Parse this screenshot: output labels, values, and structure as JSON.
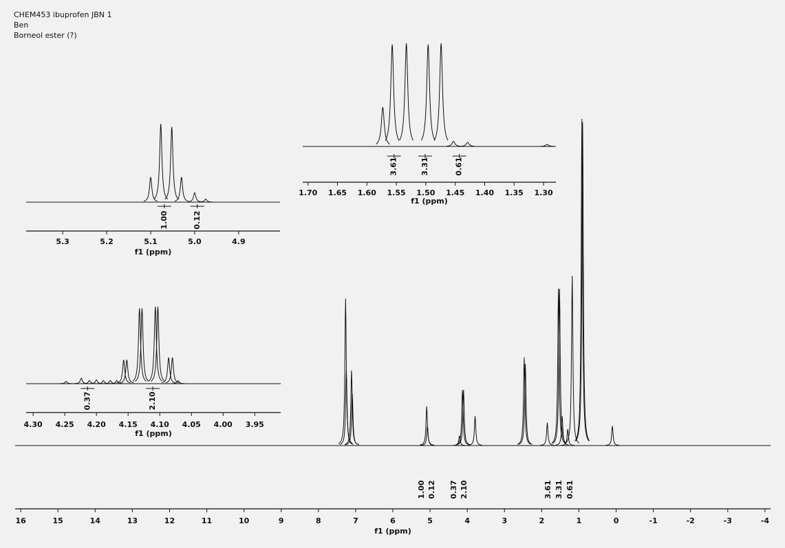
{
  "chart_data": [
    {
      "type": "line",
      "title": "CHEM453 ibuprofen JBN 1",
      "subtitle": "Ben",
      "annotation": "Borneol ester (?)",
      "xlabel": "f1 (ppm)",
      "xlim": [
        16.15,
        -4.15
      ],
      "xticks": [
        16,
        15,
        14,
        13,
        12,
        11,
        10,
        9,
        8,
        7,
        6,
        5,
        4,
        3,
        2,
        1,
        0,
        -1,
        -2,
        -3,
        -4
      ],
      "ylim": [
        0,
        100
      ],
      "color": "#111111",
      "peaks": {
        "x": [
          7.27,
          7.25,
          7.11,
          7.09,
          5.09,
          5.07,
          4.21,
          4.13,
          4.1,
          3.79,
          2.47,
          2.44,
          1.85,
          1.55,
          1.52,
          1.45,
          1.3,
          1.18,
          0.92,
          0.9,
          0.1
        ],
        "values": [
          45,
          23,
          23,
          16,
          12,
          6,
          3,
          17,
          17,
          9,
          27,
          25,
          7,
          48,
          48,
          9,
          5,
          52,
          100,
          99,
          6
        ]
      },
      "integrals": {
        "x": [
          5.22,
          4.95,
          4.35,
          4.08,
          1.82,
          1.53,
          1.23
        ],
        "values": [
          1,
          0.12,
          0.37,
          2.1,
          3.61,
          3.31,
          0.61
        ],
        "value_labels": [
          "1.00",
          "0.12",
          "0.37",
          "2.10",
          "3.61",
          "3.31",
          "0.61"
        ]
      }
    },
    {
      "type": "line",
      "xlabel": "f1 (ppm)",
      "xlim": [
        5.383,
        4.806
      ],
      "xticks": [
        5.3,
        5.2,
        5.1,
        {
          "value": 5,
          "label": "5.0"
        },
        4.9
      ],
      "ylim": [
        0,
        100
      ],
      "color": "#111111",
      "peaks": {
        "x": [
          5.1,
          5.077,
          5.052,
          5.03,
          5.0,
          4.975
        ],
        "values": [
          32,
          100,
          96,
          32,
          12,
          4
        ]
      },
      "integrals": {
        "x": [
          5.069,
          4.994
        ],
        "values": [
          1,
          0.12
        ],
        "value_labels": [
          "1.00",
          "0.12"
        ]
      }
    },
    {
      "type": "line",
      "xlabel": "f1 (ppm)",
      "xlim": [
        1.709,
        1.279
      ],
      "xticks": [
        {
          "value": 1.7,
          "label": "1.70"
        },
        1.65,
        {
          "value": 1.6,
          "label": "1.60"
        },
        1.55,
        {
          "value": 1.5,
          "label": "1.50"
        },
        1.45,
        {
          "value": 1.4,
          "label": "1.40"
        },
        1.35,
        {
          "value": 1.3,
          "label": "1.30"
        }
      ],
      "ylim": [
        0,
        100
      ],
      "color": "#111111",
      "peaks": {
        "x": [
          1.573,
          1.557,
          1.533,
          1.496,
          1.474,
          1.453,
          1.429,
          1.294
        ],
        "values": [
          38,
          99,
          100,
          99,
          100,
          5,
          4,
          2
        ]
      },
      "integrals": {
        "x": [
          1.554,
          1.501,
          1.443
        ],
        "values": [
          3.61,
          3.31,
          0.61
        ],
        "value_labels": [
          "3.61",
          "3.31",
          "0.61"
        ]
      }
    },
    {
      "type": "line",
      "xlabel": "f1 (ppm)",
      "xlim": [
        4.311,
        3.909
      ],
      "xticks": [
        {
          "value": 4.3,
          "label": "4.30"
        },
        4.25,
        {
          "value": 4.2,
          "label": "4.20"
        },
        4.15,
        {
          "value": 4.1,
          "label": "4.10"
        },
        4.05,
        {
          "value": 4,
          "label": "4.00"
        },
        3.95
      ],
      "ylim": [
        0,
        100
      ],
      "color": "#111111",
      "peaks": {
        "x": [
          4.248,
          4.224,
          4.211,
          4.2,
          4.189,
          4.178,
          4.168,
          4.157,
          4.152,
          4.132,
          4.128,
          4.107,
          4.103,
          4.086,
          4.08,
          4.071
        ],
        "values": [
          3,
          7,
          4,
          5,
          4,
          4,
          4,
          31,
          31,
          98,
          98,
          100,
          100,
          34,
          34,
          4
        ]
      },
      "integrals": {
        "x": [
          4.214,
          4.111
        ],
        "values": [
          0.37,
          2.1
        ],
        "value_labels": [
          "0.37",
          "2.10"
        ]
      }
    }
  ]
}
